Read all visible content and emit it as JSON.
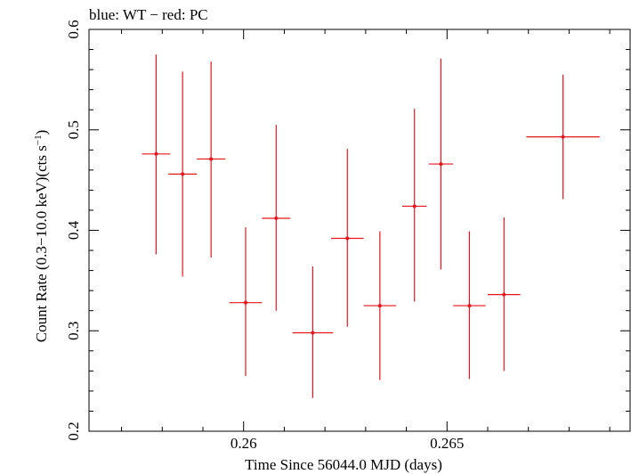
{
  "chart_data": {
    "type": "scatter",
    "title": "blue: WT − red: PC",
    "xlabel": "Time Since 56044.0 MJD (days)",
    "ylabel_main": "Count Rate (0.3−10.0 keV)(cts s",
    "ylabel_sup": "−1",
    "ylabel_close": ")",
    "xlim": [
      0.2562,
      0.2695
    ],
    "ylim": [
      0.2,
      0.6
    ],
    "xticks": [
      {
        "value": 0.26,
        "label": "0.26"
      },
      {
        "value": 0.265,
        "label": "0.265"
      }
    ],
    "yticks": [
      {
        "value": 0.2,
        "label": "0.2"
      },
      {
        "value": 0.3,
        "label": "0.3"
      },
      {
        "value": 0.4,
        "label": "0.4"
      },
      {
        "value": 0.5,
        "label": "0.5"
      },
      {
        "value": 0.6,
        "label": "0.6"
      }
    ],
    "grid": false,
    "series": [
      {
        "color": "#e8141b",
        "points": [
          {
            "x": 0.25785,
            "xerr": 0.00035,
            "y": 0.476,
            "yerr_lo": 0.1,
            "yerr_hi": 0.099
          },
          {
            "x": 0.2585,
            "xerr": 0.00035,
            "y": 0.456,
            "yerr_lo": 0.102,
            "yerr_hi": 0.102
          },
          {
            "x": 0.2592,
            "xerr": 0.00035,
            "y": 0.471,
            "yerr_lo": 0.098,
            "yerr_hi": 0.097
          },
          {
            "x": 0.26005,
            "xerr": 0.0004,
            "y": 0.328,
            "yerr_lo": 0.073,
            "yerr_hi": 0.075
          },
          {
            "x": 0.2608,
            "xerr": 0.00035,
            "y": 0.412,
            "yerr_lo": 0.092,
            "yerr_hi": 0.093
          },
          {
            "x": 0.2617,
            "xerr": 0.0005,
            "y": 0.298,
            "yerr_lo": 0.065,
            "yerr_hi": 0.066
          },
          {
            "x": 0.26255,
            "xerr": 0.0004,
            "y": 0.392,
            "yerr_lo": 0.088,
            "yerr_hi": 0.089
          },
          {
            "x": 0.26335,
            "xerr": 0.0004,
            "y": 0.325,
            "yerr_lo": 0.074,
            "yerr_hi": 0.074
          },
          {
            "x": 0.2642,
            "xerr": 0.0003,
            "y": 0.424,
            "yerr_lo": 0.095,
            "yerr_hi": 0.097
          },
          {
            "x": 0.26485,
            "xerr": 0.0003,
            "y": 0.466,
            "yerr_lo": 0.105,
            "yerr_hi": 0.105
          },
          {
            "x": 0.26555,
            "xerr": 0.0004,
            "y": 0.325,
            "yerr_lo": 0.073,
            "yerr_hi": 0.074
          },
          {
            "x": 0.2664,
            "xerr": 0.0004,
            "y": 0.336,
            "yerr_lo": 0.076,
            "yerr_hi": 0.077
          },
          {
            "x": 0.26785,
            "xerr": 0.0009,
            "y": 0.493,
            "yerr_lo": 0.062,
            "yerr_hi": 0.062
          }
        ]
      }
    ]
  }
}
